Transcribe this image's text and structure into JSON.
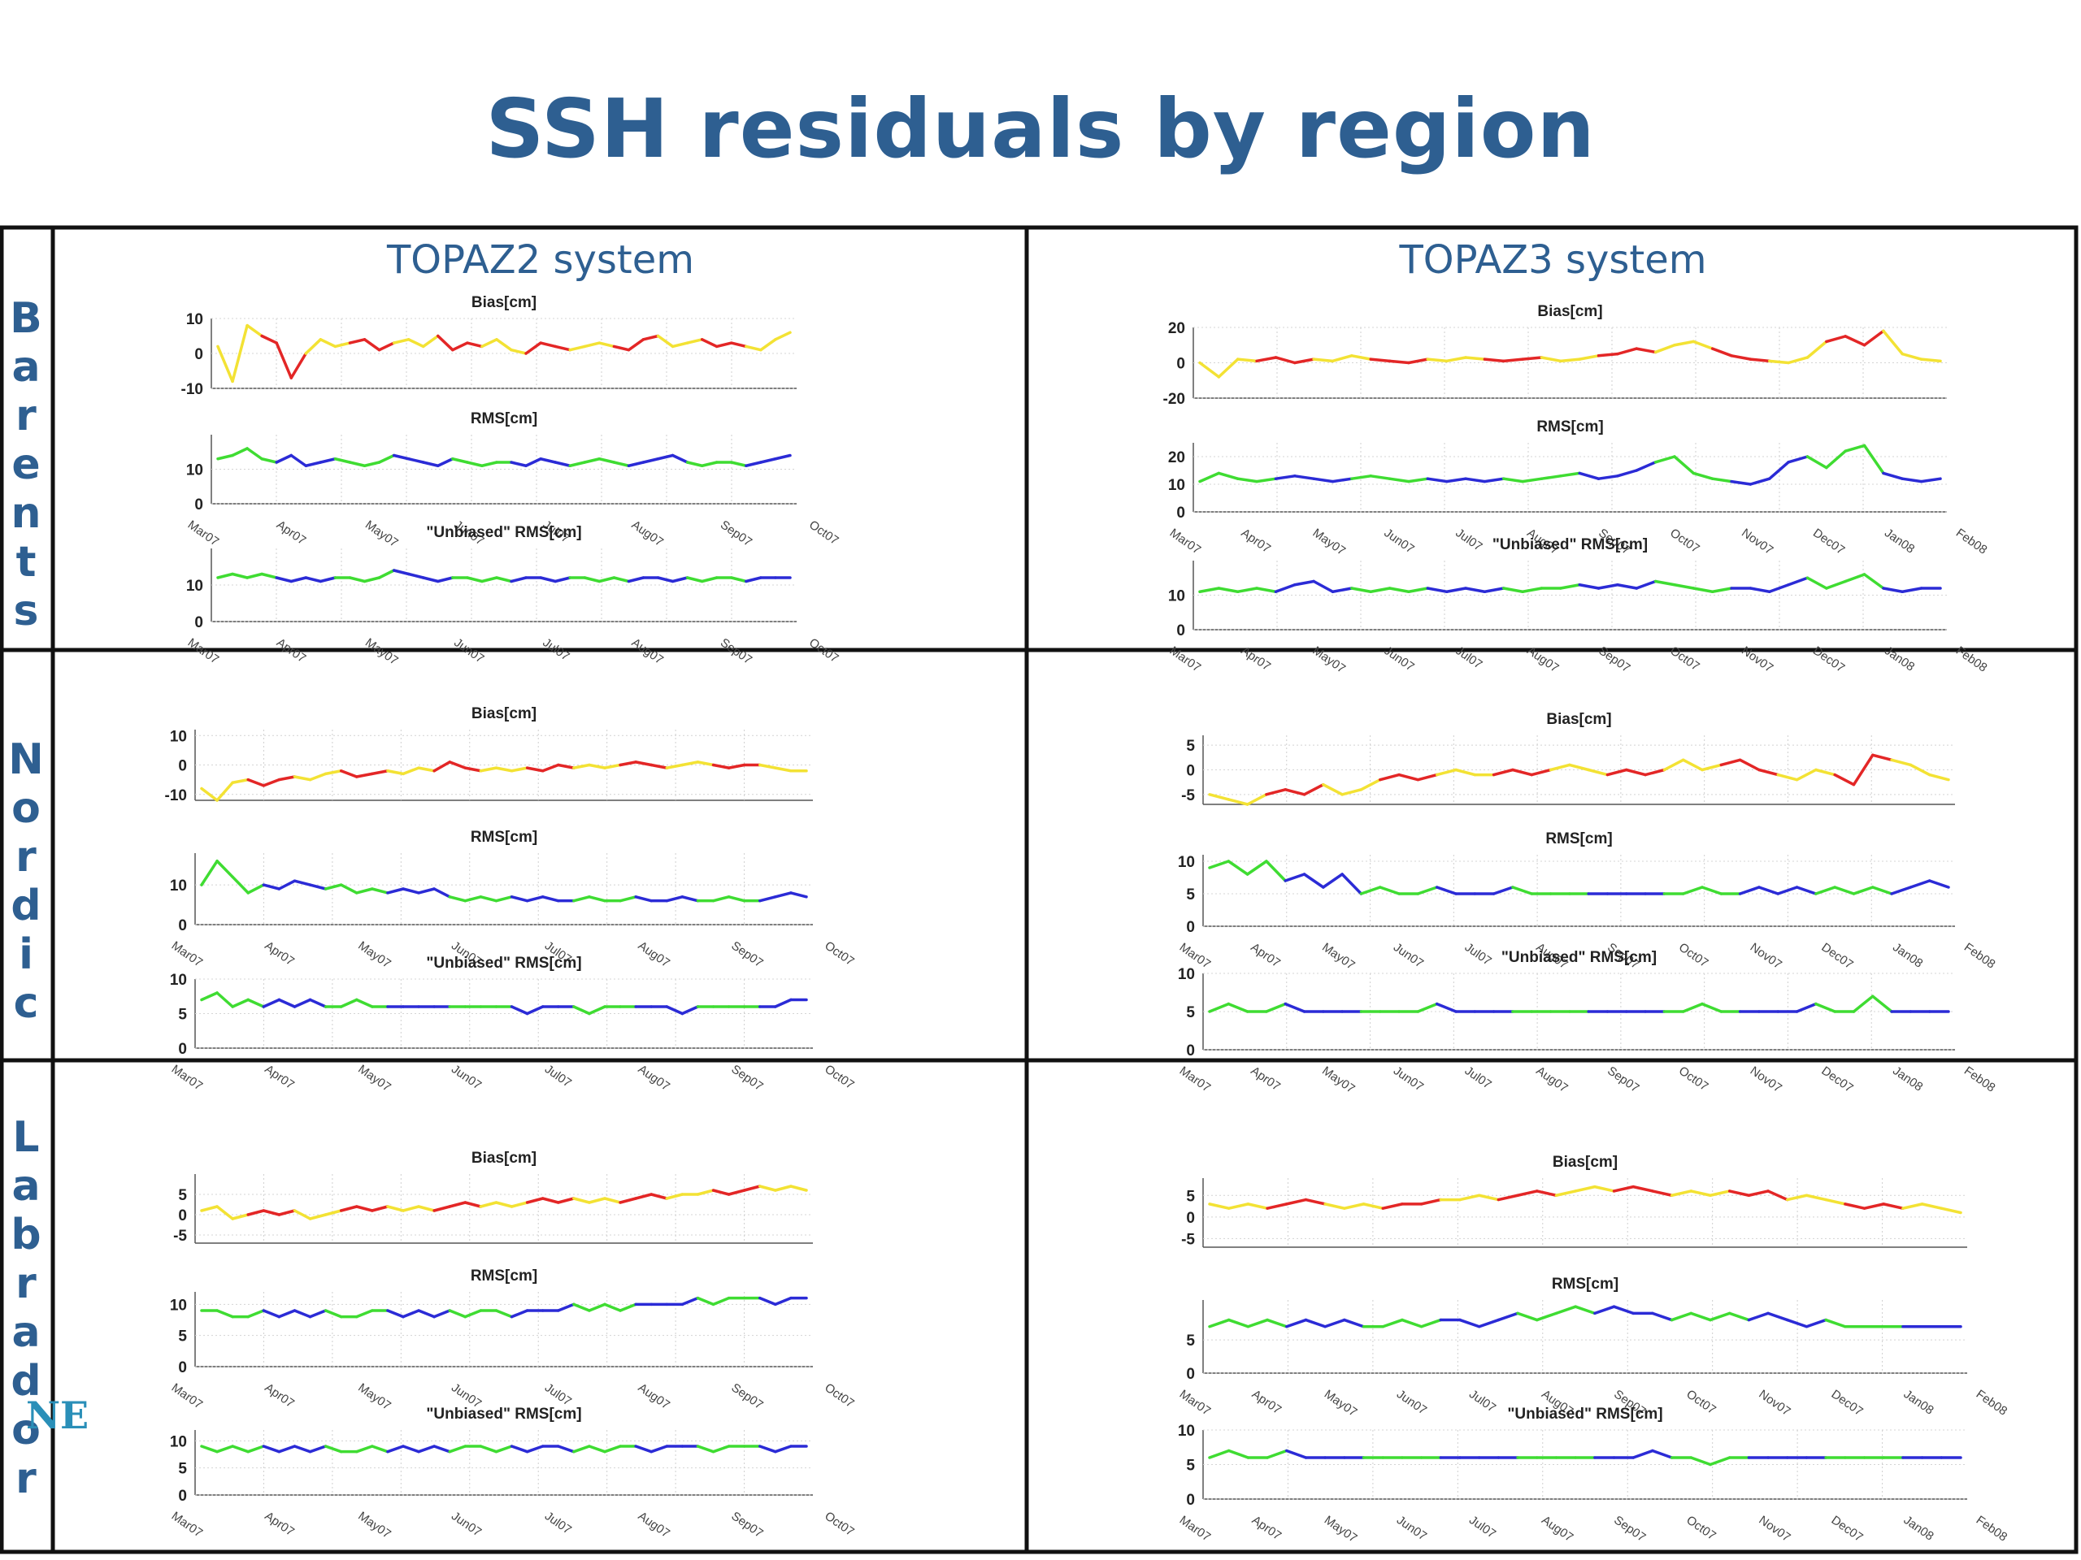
{
  "title": "SSH residuals by region",
  "column_headers": [
    "TOPAZ2 system",
    "TOPAZ3 system"
  ],
  "regions": [
    "Barents",
    "Nordic",
    "Labrador"
  ],
  "logo_text": "NE",
  "colors": {
    "title": "#2e5f91",
    "red": "#e32626",
    "yellow": "#f3e234",
    "green": "#3fdc32",
    "blue": "#2b2bd6"
  },
  "axis_titles": {
    "bias": "Bias[cm]",
    "rms": "RMS[cm]",
    "unbiased": "\"Unbiased\" RMS[cm]"
  },
  "months": {
    "topaz2": [
      "Mar07",
      "Apr07",
      "May07",
      "Jun07",
      "Jul07",
      "Aug07",
      "Sep07",
      "Oct07"
    ],
    "topaz3": [
      "Mar07",
      "Apr07",
      "May07",
      "Jun07",
      "Jul07",
      "Aug07",
      "Sep07",
      "Oct07",
      "Nov07",
      "Dec07",
      "Jan08",
      "Feb08"
    ]
  },
  "chart_data": [
    {
      "type": "line",
      "panel": "Barents / TOPAZ2 system",
      "title": "Bias[cm]",
      "ylim": [
        -10,
        10
      ],
      "yticks": [
        10,
        0,
        -10
      ],
      "color_mode": "bias",
      "y": [
        2,
        -8,
        8,
        5,
        3,
        -7,
        0,
        4,
        2,
        3,
        4,
        1,
        3,
        4,
        2,
        5,
        1,
        3,
        2,
        4,
        1,
        0,
        3,
        2,
        1,
        2,
        3,
        2,
        1,
        4,
        5,
        2,
        3,
        4,
        2,
        3,
        2,
        1,
        4,
        6
      ]
    },
    {
      "type": "line",
      "panel": "Barents / TOPAZ2 system",
      "title": "RMS[cm]",
      "ylim": [
        0,
        20
      ],
      "yticks": [
        10,
        0
      ],
      "color_mode": "rms",
      "y": [
        13,
        14,
        16,
        13,
        12,
        14,
        11,
        12,
        13,
        12,
        11,
        12,
        14,
        13,
        12,
        11,
        13,
        12,
        11,
        12,
        12,
        11,
        13,
        12,
        11,
        12,
        13,
        12,
        11,
        12,
        13,
        14,
        12,
        11,
        12,
        12,
        11,
        12,
        13,
        14
      ]
    },
    {
      "type": "line",
      "panel": "Barents / TOPAZ2 system",
      "title": "\"Unbiased\" RMS[cm]",
      "ylim": [
        0,
        20
      ],
      "yticks": [
        10,
        0
      ],
      "color_mode": "rms",
      "y": [
        12,
        13,
        12,
        13,
        12,
        11,
        12,
        11,
        12,
        12,
        11,
        12,
        14,
        13,
        12,
        11,
        12,
        12,
        11,
        12,
        11,
        12,
        12,
        11,
        12,
        12,
        11,
        12,
        11,
        12,
        12,
        11,
        12,
        11,
        12,
        12,
        11,
        12,
        12,
        12
      ]
    },
    {
      "type": "line",
      "panel": "Barents / TOPAZ3 system",
      "title": "Bias[cm]",
      "ylim": [
        -20,
        20
      ],
      "yticks": [
        20,
        0,
        -20
      ],
      "color_mode": "bias",
      "y": [
        0,
        -8,
        2,
        1,
        3,
        0,
        2,
        1,
        4,
        2,
        1,
        0,
        2,
        1,
        3,
        2,
        1,
        2,
        3,
        1,
        2,
        4,
        5,
        8,
        6,
        10,
        12,
        8,
        4,
        2,
        1,
        0,
        3,
        12,
        15,
        10,
        18,
        5,
        2,
        1
      ]
    },
    {
      "type": "line",
      "panel": "Barents / TOPAZ3 system",
      "title": "RMS[cm]",
      "ylim": [
        0,
        25
      ],
      "yticks": [
        20,
        10,
        0
      ],
      "color_mode": "rms",
      "y": [
        11,
        14,
        12,
        11,
        12,
        13,
        12,
        11,
        12,
        13,
        12,
        11,
        12,
        11,
        12,
        11,
        12,
        11,
        12,
        13,
        14,
        12,
        13,
        15,
        18,
        20,
        14,
        12,
        11,
        10,
        12,
        18,
        20,
        16,
        22,
        24,
        14,
        12,
        11,
        12
      ]
    },
    {
      "type": "line",
      "panel": "Barents / TOPAZ3 system",
      "title": "\"Unbiased\" RMS[cm]",
      "ylim": [
        0,
        20
      ],
      "yticks": [
        10,
        0
      ],
      "color_mode": "rms",
      "y": [
        11,
        12,
        11,
        12,
        11,
        13,
        14,
        11,
        12,
        11,
        12,
        11,
        12,
        11,
        12,
        11,
        12,
        11,
        12,
        12,
        13,
        12,
        13,
        12,
        14,
        13,
        12,
        11,
        12,
        12,
        11,
        13,
        15,
        12,
        14,
        16,
        12,
        11,
        12,
        12
      ]
    },
    {
      "type": "line",
      "panel": "Nordic / TOPAZ2 system",
      "title": "Bias[cm]",
      "ylim": [
        -12,
        12
      ],
      "yticks": [
        10,
        0,
        -10
      ],
      "color_mode": "bias",
      "y": [
        -8,
        -12,
        -6,
        -5,
        -7,
        -5,
        -4,
        -5,
        -3,
        -2,
        -4,
        -3,
        -2,
        -3,
        -1,
        -2,
        1,
        -1,
        -2,
        -1,
        -2,
        -1,
        -2,
        0,
        -1,
        0,
        -1,
        0,
        1,
        0,
        -1,
        0,
        1,
        0,
        -1,
        0,
        0,
        -1,
        -2,
        -2
      ]
    },
    {
      "type": "line",
      "panel": "Nordic / TOPAZ2 system",
      "title": "RMS[cm]",
      "ylim": [
        0,
        18
      ],
      "yticks": [
        10,
        0
      ],
      "color_mode": "rms",
      "y": [
        10,
        16,
        12,
        8,
        10,
        9,
        11,
        10,
        9,
        10,
        8,
        9,
        8,
        9,
        8,
        9,
        7,
        6,
        7,
        6,
        7,
        6,
        7,
        6,
        6,
        7,
        6,
        6,
        7,
        6,
        6,
        7,
        6,
        6,
        7,
        6,
        6,
        7,
        8,
        7
      ]
    },
    {
      "type": "line",
      "panel": "Nordic / TOPAZ2 system",
      "title": "\"Unbiased\" RMS[cm]",
      "ylim": [
        0,
        10
      ],
      "yticks": [
        10,
        5,
        0
      ],
      "color_mode": "rms",
      "y": [
        7,
        8,
        6,
        7,
        6,
        7,
        6,
        7,
        6,
        6,
        7,
        6,
        6,
        6,
        6,
        6,
        6,
        6,
        6,
        6,
        6,
        5,
        6,
        6,
        6,
        5,
        6,
        6,
        6,
        6,
        6,
        5,
        6,
        6,
        6,
        6,
        6,
        6,
        7,
        7
      ]
    },
    {
      "type": "line",
      "panel": "Nordic / TOPAZ3 system",
      "title": "Bias[cm]",
      "ylim": [
        -7,
        7
      ],
      "yticks": [
        5,
        0,
        -5
      ],
      "color_mode": "bias",
      "y": [
        -5,
        -6,
        -7,
        -5,
        -4,
        -5,
        -3,
        -5,
        -4,
        -2,
        -1,
        -2,
        -1,
        0,
        -1,
        -1,
        0,
        -1,
        0,
        1,
        0,
        -1,
        0,
        -1,
        0,
        2,
        0,
        1,
        2,
        0,
        -1,
        -2,
        0,
        -1,
        -3,
        3,
        2,
        1,
        -1,
        -2
      ]
    },
    {
      "type": "line",
      "panel": "Nordic / TOPAZ3 system",
      "title": "RMS[cm]",
      "ylim": [
        0,
        11
      ],
      "yticks": [
        10,
        5,
        0
      ],
      "color_mode": "rms",
      "y": [
        9,
        10,
        8,
        10,
        7,
        8,
        6,
        8,
        5,
        6,
        5,
        5,
        6,
        5,
        5,
        5,
        6,
        5,
        5,
        5,
        5,
        5,
        5,
        5,
        5,
        5,
        6,
        5,
        5,
        6,
        5,
        6,
        5,
        6,
        5,
        6,
        5,
        6,
        7,
        6
      ]
    },
    {
      "type": "line",
      "panel": "Nordic / TOPAZ3 system",
      "title": "\"Unbiased\" RMS[cm]",
      "ylim": [
        0,
        10
      ],
      "yticks": [
        10,
        5,
        0
      ],
      "color_mode": "rms",
      "y": [
        5,
        6,
        5,
        5,
        6,
        5,
        5,
        5,
        5,
        5,
        5,
        5,
        6,
        5,
        5,
        5,
        5,
        5,
        5,
        5,
        5,
        5,
        5,
        5,
        5,
        5,
        6,
        5,
        5,
        5,
        5,
        5,
        6,
        5,
        5,
        7,
        5,
        5,
        5,
        5
      ]
    },
    {
      "type": "line",
      "panel": "Labrador / TOPAZ2 system",
      "title": "Bias[cm]",
      "ylim": [
        -7,
        10
      ],
      "yticks": [
        5,
        0,
        -5
      ],
      "color_mode": "bias",
      "y": [
        1,
        2,
        -1,
        0,
        1,
        0,
        1,
        -1,
        0,
        1,
        2,
        1,
        2,
        1,
        2,
        1,
        2,
        3,
        2,
        3,
        2,
        3,
        4,
        3,
        4,
        3,
        4,
        3,
        4,
        5,
        4,
        5,
        5,
        6,
        5,
        6,
        7,
        6,
        7,
        6
      ]
    },
    {
      "type": "line",
      "panel": "Labrador / TOPAZ2 system",
      "title": "RMS[cm]",
      "ylim": [
        0,
        12
      ],
      "yticks": [
        10,
        5,
        0
      ],
      "color_mode": "rms",
      "y": [
        9,
        9,
        8,
        8,
        9,
        8,
        9,
        8,
        9,
        8,
        8,
        9,
        9,
        8,
        9,
        8,
        9,
        8,
        9,
        9,
        8,
        9,
        9,
        9,
        10,
        9,
        10,
        9,
        10,
        10,
        10,
        10,
        11,
        10,
        11,
        11,
        11,
        10,
        11,
        11
      ]
    },
    {
      "type": "line",
      "panel": "Labrador / TOPAZ2 system",
      "title": "\"Unbiased\" RMS[cm]",
      "ylim": [
        0,
        12
      ],
      "yticks": [
        10,
        5,
        0
      ],
      "color_mode": "rms",
      "y": [
        9,
        8,
        9,
        8,
        9,
        8,
        9,
        8,
        9,
        8,
        8,
        9,
        8,
        9,
        8,
        9,
        8,
        9,
        9,
        8,
        9,
        8,
        9,
        9,
        8,
        9,
        8,
        9,
        9,
        8,
        9,
        9,
        9,
        8,
        9,
        9,
        9,
        8,
        9,
        9
      ]
    },
    {
      "type": "line",
      "panel": "Labrador / TOPAZ3 system",
      "title": "Bias[cm]",
      "ylim": [
        -7,
        9
      ],
      "yticks": [
        5,
        0,
        -5
      ],
      "color_mode": "bias",
      "y": [
        3,
        2,
        3,
        2,
        3,
        4,
        3,
        2,
        3,
        2,
        3,
        3,
        4,
        4,
        5,
        4,
        5,
        6,
        5,
        6,
        7,
        6,
        7,
        6,
        5,
        6,
        5,
        6,
        5,
        6,
        4,
        5,
        4,
        3,
        2,
        3,
        2,
        3,
        2,
        1
      ]
    },
    {
      "type": "line",
      "panel": "Labrador / TOPAZ3 system",
      "title": "RMS[cm]",
      "ylim": [
        0,
        11
      ],
      "yticks": [
        5,
        0
      ],
      "color_mode": "rms",
      "y": [
        7,
        8,
        7,
        8,
        7,
        8,
        7,
        8,
        7,
        7,
        8,
        7,
        8,
        8,
        7,
        8,
        9,
        8,
        9,
        10,
        9,
        10,
        9,
        9,
        8,
        9,
        8,
        9,
        8,
        9,
        8,
        7,
        8,
        7,
        7,
        7,
        7,
        7,
        7,
        7
      ]
    },
    {
      "type": "line",
      "panel": "Labrador / TOPAZ3 system",
      "title": "\"Unbiased\" RMS[cm]",
      "ylim": [
        0,
        10
      ],
      "yticks": [
        10,
        5,
        0
      ],
      "color_mode": "rms",
      "y": [
        6,
        7,
        6,
        6,
        7,
        6,
        6,
        6,
        6,
        6,
        6,
        6,
        6,
        6,
        6,
        6,
        6,
        6,
        6,
        6,
        6,
        6,
        6,
        7,
        6,
        6,
        5,
        6,
        6,
        6,
        6,
        6,
        6,
        6,
        6,
        6,
        6,
        6,
        6,
        6
      ]
    }
  ]
}
